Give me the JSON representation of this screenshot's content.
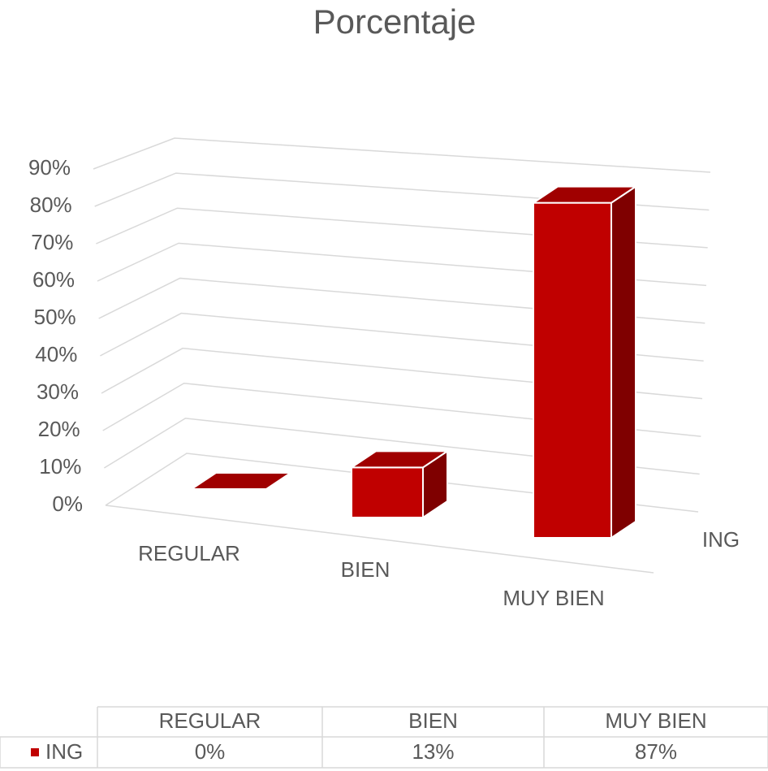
{
  "chart_data": {
    "type": "bar3d",
    "title": "Porcentaje",
    "categories": [
      "REGULAR",
      "BIEN",
      "MUY BIEN"
    ],
    "series": [
      {
        "name": "ING",
        "color": "#c00000",
        "values": [
          0,
          13,
          87
        ],
        "value_labels": [
          "0%",
          "13%",
          "87%"
        ]
      }
    ],
    "ylim": [
      0,
      90
    ],
    "yticks": [
      {
        "value": 0,
        "label": "0%"
      },
      {
        "value": 10,
        "label": "10%"
      },
      {
        "value": 20,
        "label": "20%"
      },
      {
        "value": 30,
        "label": "30%"
      },
      {
        "value": 40,
        "label": "40%"
      },
      {
        "value": 50,
        "label": "50%"
      },
      {
        "value": 60,
        "label": "60%"
      },
      {
        "value": 70,
        "label": "70%"
      },
      {
        "value": 80,
        "label": "80%"
      },
      {
        "value": 90,
        "label": "90%"
      }
    ],
    "grid": true,
    "data_table": true
  }
}
